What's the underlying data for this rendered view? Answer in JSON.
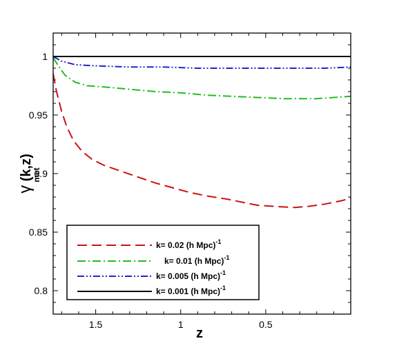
{
  "chart_data": {
    "type": "line",
    "title": "",
    "xlabel": "z",
    "ylabel_main": "γ",
    "ylabel_paren": " (k,z)",
    "ylabel_sub": "met",
    "xlim": [
      1.75,
      0.0
    ],
    "ylim": [
      0.78,
      1.02
    ],
    "x_reversed": true,
    "x_ticks": [
      1.5,
      1,
      0.5
    ],
    "x_tick_labels": [
      "1.5",
      "1",
      "0.5"
    ],
    "y_ticks": [
      0.8,
      0.85,
      0.9,
      0.95,
      1
    ],
    "y_tick_labels": [
      "0.8",
      "0.85",
      "0.9",
      "0.95",
      "1"
    ],
    "legend_position": "bottom-left",
    "series": [
      {
        "label_main": "k= 0.02  (h Mpc)",
        "label_sup": "-1",
        "color": "#cc1111",
        "dash": "dash",
        "points": [
          [
            1.75,
            0.985
          ],
          [
            1.73,
            0.97
          ],
          [
            1.7,
            0.953
          ],
          [
            1.67,
            0.94
          ],
          [
            1.63,
            0.928
          ],
          [
            1.58,
            0.919
          ],
          [
            1.52,
            0.912
          ],
          [
            1.45,
            0.907
          ],
          [
            1.35,
            0.902
          ],
          [
            1.25,
            0.897
          ],
          [
            1.15,
            0.892
          ],
          [
            1.05,
            0.888
          ],
          [
            0.95,
            0.884
          ],
          [
            0.85,
            0.881
          ],
          [
            0.72,
            0.878
          ],
          [
            0.62,
            0.875
          ],
          [
            0.55,
            0.873
          ],
          [
            0.45,
            0.872
          ],
          [
            0.33,
            0.871
          ],
          [
            0.25,
            0.872
          ],
          [
            0.15,
            0.874
          ],
          [
            0.05,
            0.877
          ],
          [
            0.0,
            0.879
          ]
        ]
      },
      {
        "label_main": "k= 0.01  (h Mpc)",
        "label_sup": "-1",
        "color": "#22bb22",
        "dash": "dashdot",
        "points": [
          [
            1.75,
            0.999
          ],
          [
            1.72,
            0.992
          ],
          [
            1.68,
            0.984
          ],
          [
            1.62,
            0.978
          ],
          [
            1.55,
            0.975
          ],
          [
            1.45,
            0.974
          ],
          [
            1.3,
            0.972
          ],
          [
            1.15,
            0.97
          ],
          [
            1.0,
            0.969
          ],
          [
            0.85,
            0.967
          ],
          [
            0.7,
            0.966
          ],
          [
            0.55,
            0.965
          ],
          [
            0.4,
            0.964
          ],
          [
            0.3,
            0.964
          ],
          [
            0.2,
            0.964
          ],
          [
            0.1,
            0.965
          ],
          [
            0.0,
            0.966
          ]
        ]
      },
      {
        "label_main": "k= 0.005  (h Mpc)",
        "label_sup": "-1",
        "color": "#2222cc",
        "dash": "dashdotdot",
        "points": [
          [
            1.75,
            1.0
          ],
          [
            1.7,
            0.996
          ],
          [
            1.62,
            0.993
          ],
          [
            1.5,
            0.992
          ],
          [
            1.3,
            0.991
          ],
          [
            1.1,
            0.991
          ],
          [
            0.9,
            0.99
          ],
          [
            0.7,
            0.99
          ],
          [
            0.5,
            0.99
          ],
          [
            0.3,
            0.99
          ],
          [
            0.15,
            0.99
          ],
          [
            0.0,
            0.991
          ]
        ]
      },
      {
        "label_main": "k= 0.001  (h Mpc)",
        "label_sup": "-1",
        "color": "#000000",
        "dash": "solid",
        "points": [
          [
            1.75,
            1.0
          ],
          [
            1.4,
            1.0
          ],
          [
            1.0,
            1.0
          ],
          [
            0.6,
            1.0
          ],
          [
            0.3,
            1.0
          ],
          [
            0.0,
            1.0
          ]
        ]
      }
    ]
  }
}
